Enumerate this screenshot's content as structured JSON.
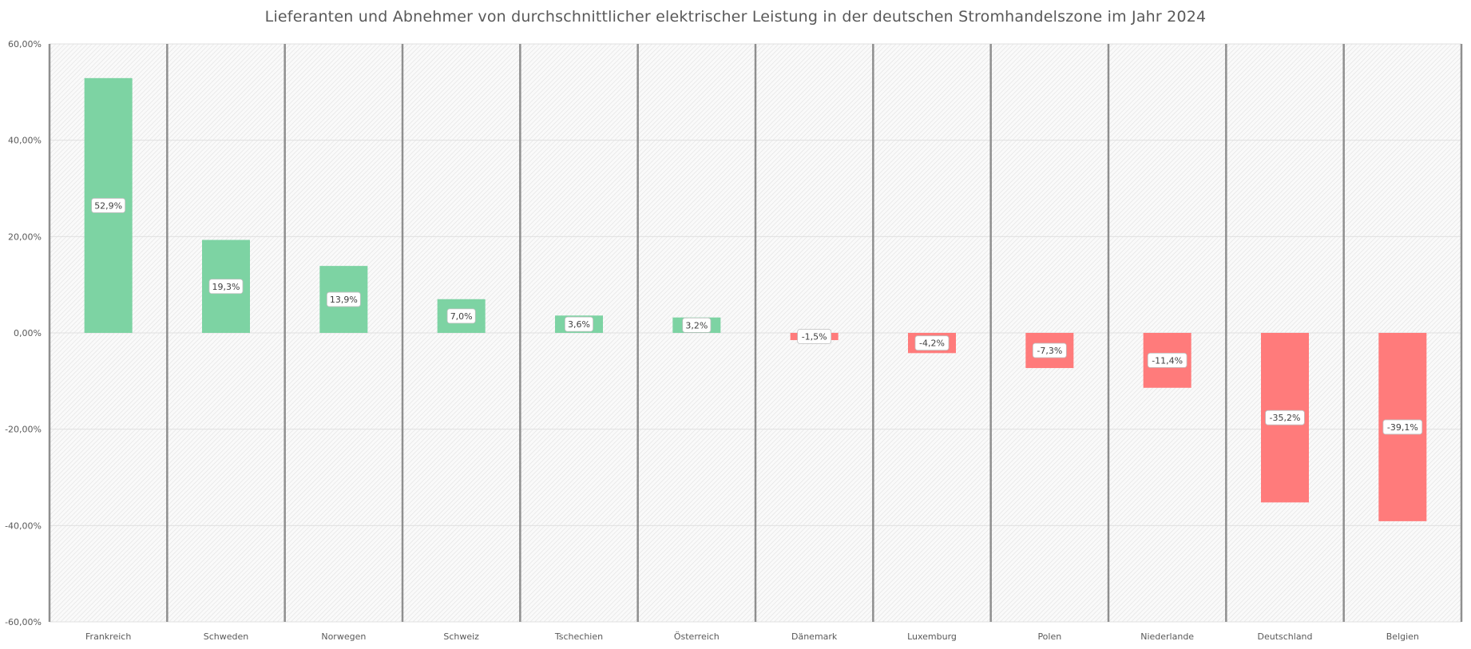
{
  "chart_data": {
    "type": "bar",
    "title": "Lieferanten und Abnehmer von durchschnittlicher  elektrischer Leistung in der deutschen Stromhandelszone  im Jahr 2024",
    "xlabel": "",
    "ylabel": "",
    "categories": [
      "Frankreich",
      "Schweden",
      "Norwegen",
      "Schweiz",
      "Tschechien",
      "Österreich",
      "Dänemark",
      "Luxemburg",
      "Polen",
      "Niederlande",
      "Deutschland",
      "Belgien"
    ],
    "values": [
      52.9,
      19.3,
      13.9,
      7.0,
      3.6,
      3.2,
      -1.5,
      -4.2,
      -7.3,
      -11.4,
      -35.2,
      -39.1
    ],
    "data_labels": [
      "52,9%",
      "19,3%",
      "13,9%",
      "7,0%",
      "3,6%",
      "3,2%",
      "-1,5%",
      "-4,2%",
      "-7,3%",
      "-11,4%",
      "-35,2%",
      "-39,1%"
    ],
    "ylim": [
      -60,
      60
    ],
    "yticks": [
      60,
      40,
      20,
      0,
      -20,
      -40,
      -60
    ],
    "ytick_labels": [
      "60,00%",
      "40,00%",
      "20,00%",
      "0,00%",
      "-20,00%",
      "-40,00%",
      "-60,00%"
    ],
    "grid": true,
    "legend": "none",
    "colors": {
      "positive": "#7dd3a3",
      "negative": "#ff7b7b",
      "separator": "#8f8f8f",
      "gridline": "#e0e0e0",
      "text": "#595959"
    }
  }
}
